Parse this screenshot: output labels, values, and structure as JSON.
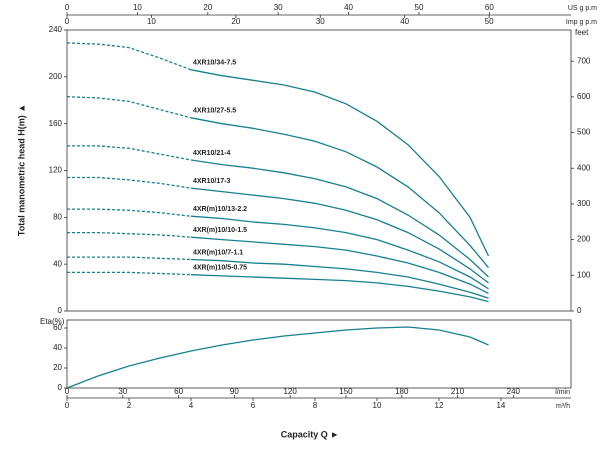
{
  "chart_data": [
    {
      "type": "line",
      "ylabel": "Total manometric head H(m) ▲",
      "y2label": "feet",
      "x": [
        0,
        1,
        2,
        3,
        4,
        5,
        6,
        7,
        8,
        9,
        10,
        11,
        12,
        13,
        13.6
      ],
      "xlim": [
        0,
        16.26
      ],
      "ylim": [
        0,
        240
      ],
      "yticks": [
        0,
        40,
        80,
        120,
        160,
        200,
        240
      ],
      "y2lim": [
        0,
        787.4
      ],
      "y2ticks": [
        0,
        100,
        200,
        300,
        400,
        500,
        600,
        700
      ],
      "dash_end_x": 4,
      "top_axes": [
        {
          "label": "US g p.m",
          "xlim": [
            0,
            71.6
          ],
          "xticks": [
            0,
            10,
            20,
            30,
            40,
            50,
            60
          ]
        },
        {
          "label": "Imp g p.m",
          "xlim": [
            0,
            59.7
          ],
          "xticks": [
            0,
            10,
            20,
            30,
            40,
            50
          ]
        }
      ],
      "series": [
        {
          "name": "4XR10/34-7.5",
          "color": "#17808f",
          "values": [
            229,
            228,
            225,
            216,
            206,
            201,
            197,
            193,
            187,
            177,
            162,
            142,
            115,
            80,
            47
          ]
        },
        {
          "name": "4XR10/27-5.5",
          "color": "#17808f",
          "values": [
            183,
            182,
            179,
            172,
            165,
            160,
            156,
            151,
            145,
            136,
            123,
            106,
            84,
            56,
            37
          ]
        },
        {
          "name": "4XR10/21-4",
          "color": "#17808f",
          "values": [
            141,
            141,
            139,
            134,
            129,
            125,
            122,
            118,
            113,
            106,
            96,
            82,
            65,
            44,
            29
          ]
        },
        {
          "name": "4XR10/17-3",
          "color": "#17808f",
          "values": [
            114,
            114,
            112,
            109,
            105,
            102,
            99,
            96,
            92,
            86,
            78,
            67,
            53,
            36,
            24
          ]
        },
        {
          "name": "4XR(m)10/13-2.2",
          "color": "#17808f",
          "values": [
            87,
            87,
            86,
            84,
            81,
            79,
            76,
            74,
            71,
            67,
            61,
            52,
            42,
            29,
            19
          ]
        },
        {
          "name": "4XR(m)10/10-1.5",
          "color": "#17808f",
          "values": [
            67,
            67,
            66,
            65,
            63,
            61,
            59,
            57,
            55,
            52,
            47,
            41,
            33,
            23,
            15
          ]
        },
        {
          "name": "4XR(m)10/7-1.1",
          "color": "#17808f",
          "values": [
            46,
            46,
            46,
            45,
            44,
            43,
            41,
            40,
            38,
            36,
            33,
            29,
            23,
            16,
            11
          ]
        },
        {
          "name": "4XR(m)10/5-0.75",
          "color": "#17808f",
          "values": [
            33,
            33,
            33,
            32,
            31,
            30,
            29,
            28,
            27,
            26,
            24,
            21,
            17,
            12,
            8
          ]
        }
      ]
    },
    {
      "type": "line",
      "ylabel": "Eta(%)",
      "xlabel": "Capacity Q ►",
      "x": [
        0,
        1,
        2,
        3,
        4,
        5,
        6,
        7,
        8,
        9,
        10,
        11,
        12,
        13,
        13.6
      ],
      "xlim": [
        0,
        16.26
      ],
      "ylim": [
        0,
        68
      ],
      "yticks": [
        0,
        20,
        40,
        60
      ],
      "bottom_axes": [
        {
          "label": "l/min",
          "xlim": [
            0,
            271
          ],
          "xticks": [
            0,
            30,
            60,
            90,
            120,
            150,
            180,
            210,
            240
          ]
        },
        {
          "label": "m³/h",
          "xlim": [
            0,
            16.26
          ],
          "xticks": [
            0,
            2,
            4,
            6,
            8,
            10,
            12,
            14
          ]
        }
      ],
      "series": [
        {
          "name": "Eta",
          "color": "#17808f",
          "values": [
            0,
            12,
            22,
            30,
            37,
            43,
            48,
            52,
            55,
            58,
            60,
            61,
            58,
            51,
            43
          ]
        }
      ]
    }
  ]
}
